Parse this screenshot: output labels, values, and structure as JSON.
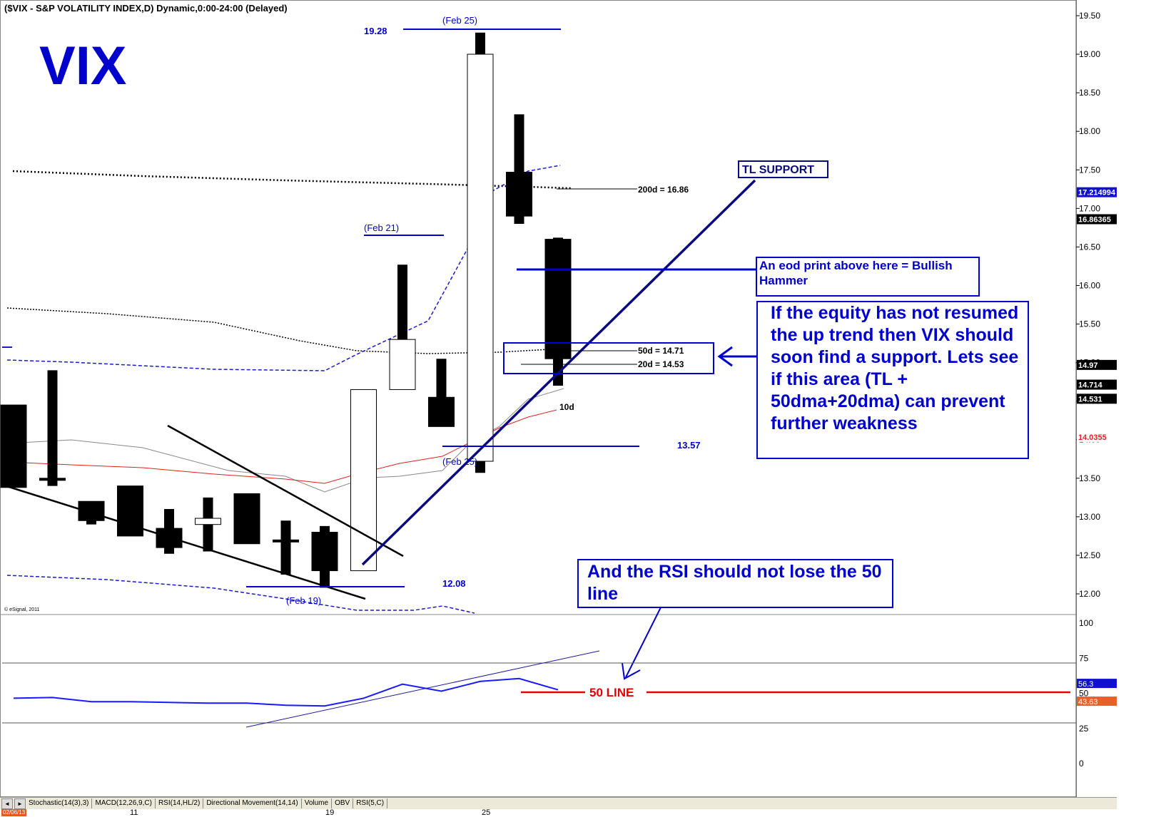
{
  "header": "($VIX - S&P VOLATILITY INDEX,D) Dynamic,0:00-24:00 (Delayed)",
  "big_title": "VIX",
  "copyright": "© eSignal, 2011",
  "colors": {
    "annotation_blue": "#0000cc",
    "ma_red": "#e02020",
    "rsi_blue": "#1a1aff",
    "fifty_line": "#e00000",
    "orange_tag": "#e8602c"
  },
  "chart_data": {
    "type": "candlestick",
    "y_axis_ticks": [
      "19.50",
      "19.00",
      "18.50",
      "18.00",
      "17.50",
      "17.00",
      "16.50",
      "16.00",
      "15.50",
      "15.00",
      "14.50",
      "14.00",
      "13.50",
      "13.00",
      "12.50",
      "12.00"
    ],
    "ylim": [
      11.7,
      19.7
    ],
    "x_tick_labels": [
      "11",
      "19",
      "25"
    ],
    "candles": [
      {
        "o": 14.45,
        "h": 14.45,
        "l": 13.38,
        "c": 13.38
      },
      {
        "o": 13.5,
        "h": 14.9,
        "l": 13.4,
        "c": 13.5
      },
      {
        "o": 13.2,
        "h": 13.2,
        "l": 12.9,
        "c": 12.95
      },
      {
        "o": 13.4,
        "h": 13.4,
        "l": 12.75,
        "c": 12.75
      },
      {
        "o": 12.85,
        "h": 13.1,
        "l": 12.52,
        "c": 12.6
      },
      {
        "o": 12.9,
        "h": 13.25,
        "l": 12.55,
        "c": 12.98
      },
      {
        "o": 13.3,
        "h": 13.3,
        "l": 12.65,
        "c": 12.65
      },
      {
        "o": 12.7,
        "h": 12.95,
        "l": 12.25,
        "c": 12.7
      },
      {
        "o": 12.8,
        "h": 12.88,
        "l": 12.08,
        "c": 12.3
      },
      {
        "o": 12.3,
        "h": 14.65,
        "l": 12.3,
        "c": 14.65
      },
      {
        "o": 14.65,
        "h": 16.27,
        "l": 14.65,
        "c": 15.3
      },
      {
        "o": 14.55,
        "h": 15.05,
        "l": 14.17,
        "c": 14.17
      },
      {
        "o": 13.72,
        "h": 19.28,
        "l": 13.57,
        "c": 19.0
      },
      {
        "o": 17.47,
        "h": 18.22,
        "l": 16.8,
        "c": 16.9
      },
      {
        "o": 16.6,
        "h": 16.62,
        "l": 14.7,
        "c": 15.05
      }
    ],
    "rsi_axis_ticks": [
      "100",
      "75",
      "50",
      "25",
      "0"
    ],
    "rsi_values": [
      46,
      46.5,
      43.5,
      43.5,
      43,
      42.5,
      42.5,
      41,
      40.5,
      46,
      56,
      51,
      58,
      60,
      52
    ],
    "right_value_tags": [
      {
        "value": "17.214994",
        "bg": "#1010d0",
        "fg": "#ffffff",
        "y": 17.21
      },
      {
        "value": "16.86365",
        "bg": "#000000",
        "fg": "#ffffff",
        "y": 16.86
      },
      {
        "value": "14.97",
        "bg": "#000000",
        "fg": "#ffffff",
        "y": 14.97
      },
      {
        "value": "14.714",
        "bg": "#000000",
        "fg": "#ffffff",
        "y": 14.714
      },
      {
        "value": "14.531",
        "bg": "#000000",
        "fg": "#ffffff",
        "y": 14.531
      },
      {
        "value": "14.0355",
        "bg": "#ffffff",
        "fg": "#e02020",
        "y": 14.0355
      }
    ],
    "rsi_tags": [
      {
        "value": "56.3",
        "bg": "#1010d0",
        "fg": "#ffffff",
        "y": 56.3
      },
      {
        "value": "43.63",
        "bg": "#e8602c",
        "fg": "#ffffff",
        "y": 43.63
      }
    ]
  },
  "annotations": {
    "feb25_top": "(Feb 25)",
    "feb21": "(Feb 21)",
    "feb25_low": "(Feb 25)",
    "feb19": "(Feb 19)",
    "val_1928": "19.28",
    "val_1357": "13.57",
    "val_1208": "12.08",
    "ma200": "200d = 16.86",
    "ma50": "50d = 14.71",
    "ma20": "20d = 14.53",
    "ma10": "10d",
    "tl_support": "TL SUPPORT",
    "bullish_box": "An eod print above here = Bullish Hammer",
    "support_box": "If the equity has not resumed the up trend then VIX should soon find a support. Lets see if this area (TL + 50dma+20dma) can prevent further weakness",
    "rsi_box": "And the RSI should not lose the 50 line",
    "fifty_line": "50 LINE"
  },
  "tabs": {
    "nav_left": "◄",
    "nav_right": "►",
    "items": [
      "Stochastic(14(3),3)",
      "MACD(12,26,9,C)",
      "RSI(14,HL/2)",
      "Directional Movement(14,14)",
      "Volume",
      "OBV",
      "RSI(5,C)"
    ]
  },
  "date_badge": "02/06/13"
}
